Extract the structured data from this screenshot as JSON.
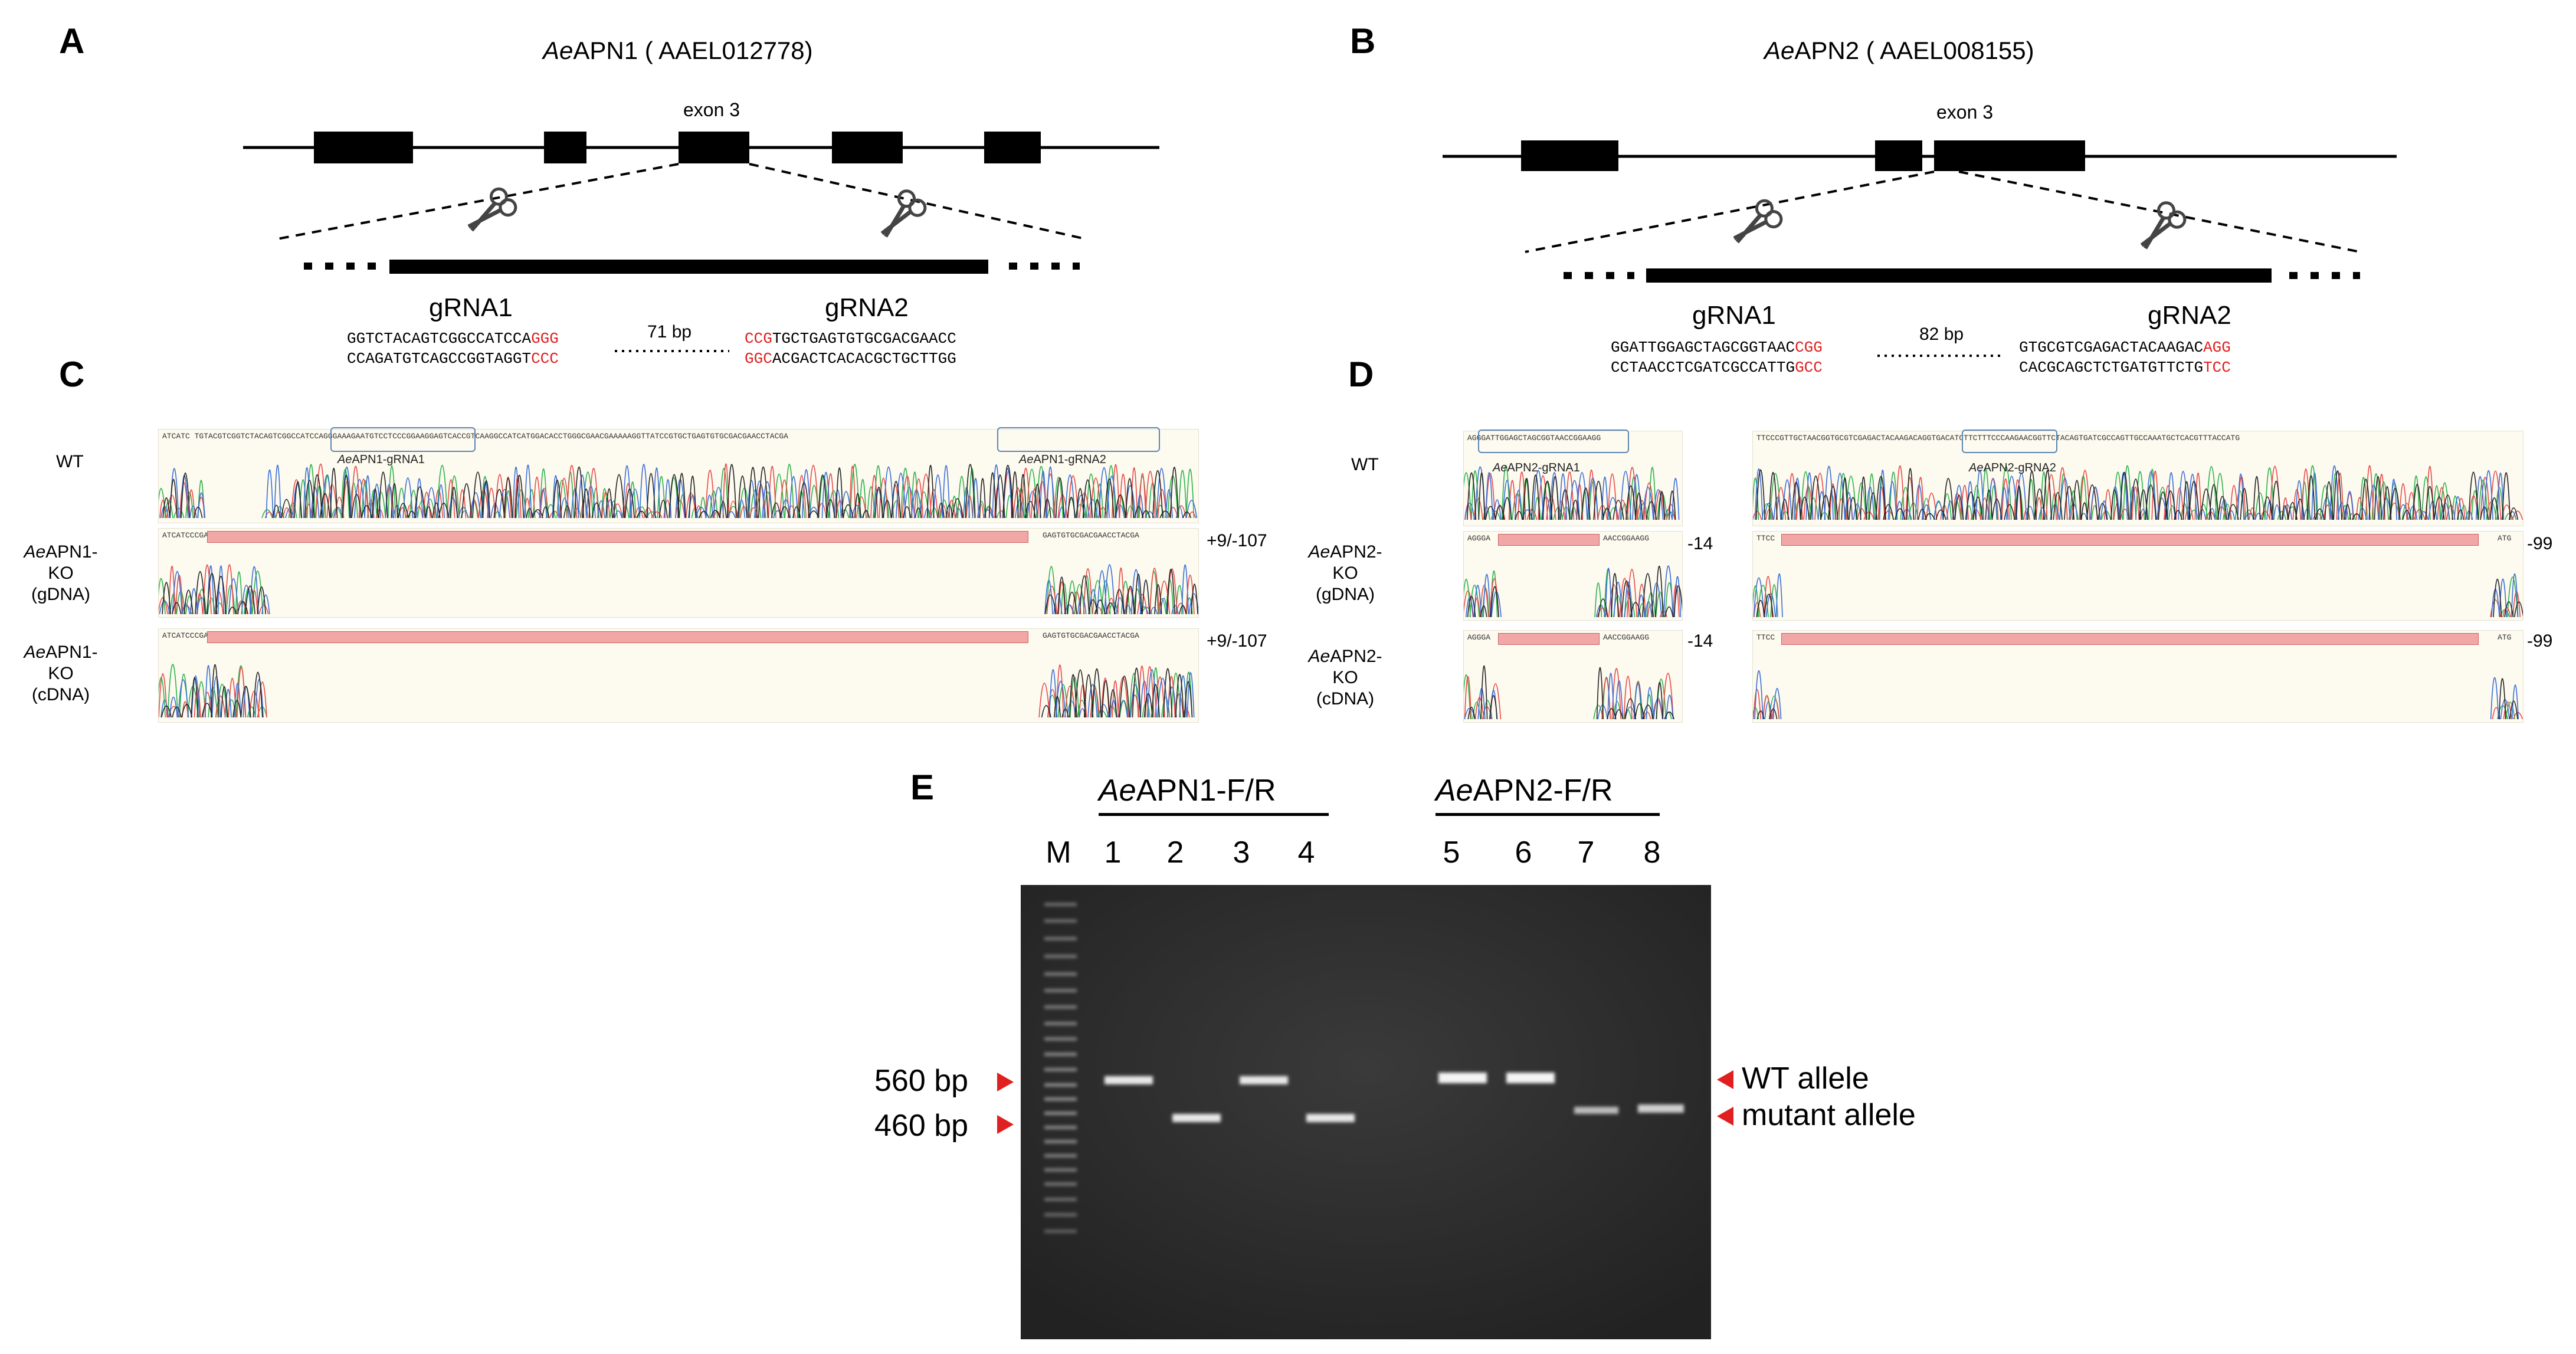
{
  "panels": {
    "A": "A",
    "B": "B",
    "C": "C",
    "D": "D",
    "E": "E"
  },
  "apn1": {
    "title_italic": "Ae",
    "title_rest": "APN1 ( AAEL012778)",
    "exon_label": "exon 3",
    "grna1_name": "gRNA1",
    "grna2_name": "gRNA2",
    "spacer": "71 bp",
    "grna1_top": "GGTCTACAGTCGGCCATCCA",
    "grna1_top_pam": "GGG",
    "grna1_bot": "CCAGATGTCAGCCGGTAGGT",
    "grna1_bot_pam": "CCC",
    "grna2_top_pam": "CCG",
    "grna2_top": "TGCTGAGTGTGCGACGAACC",
    "grna2_bot_pam": "GGC",
    "grna2_bot": "ACGACTCACACGCTGCTTGG"
  },
  "apn2": {
    "title_italic": "Ae",
    "title_rest": "APN2 ( AAEL008155)",
    "exon_label": "exon 3",
    "grna1_name": "gRNA1",
    "grna2_name": "gRNA2",
    "spacer": "82 bp",
    "grna1_top": "GGATTGGAGCTAGCGGTAAC",
    "grna1_top_pam": "CGG",
    "grna1_bot": "CCTAACCTCGATCGCCATTG",
    "grna1_bot_pam": "GCC",
    "grna2_top": "GTGCGTCGAGACTACAAGAC",
    "grna2_top_pam": "AGG",
    "grna2_bot": "CACGCAGCTCTGATGTTCTG",
    "grna2_bot_pam": "TCC"
  },
  "panelC": {
    "wt_label": "WT",
    "ko_gdna_italic": "Ae",
    "ko_gdna_rest": "APN1-KO",
    "ko_gdna_sub": "(gDNA)",
    "ko_cdna_italic": "Ae",
    "ko_cdna_rest": "APN1-KO",
    "ko_cdna_sub": "(cDNA)",
    "indel_gdna": "+9/-107",
    "indel_cdna": "+9/-107",
    "box1_caption_italic": "Ae",
    "box1_caption_rest": "APN1-gRNA1",
    "box2_caption_italic": "Ae",
    "box2_caption_rest": "APN1-gRNA2",
    "wt_seq": "ATCATC        TGTACGTCGGTCTACAGTCGGCCATCCAGGGAAAGAATGTCCTCCCGGAAGGAGTCACCGTCAAGGCCATCATGGACACCTGGGCGAACGAAAAAGGTTATCCGTGCTGAGTGTGCGACGAACCTACGA",
    "ko_seq_left": "ATCATCCCGACTCTG",
    "ko_seq_right": "GAGTGTGCGACGAACCTACGA"
  },
  "panelD": {
    "wt_label": "WT",
    "ko_gdna_italic": "Ae",
    "ko_gdna_rest": "APN2-KO",
    "ko_gdna_sub": "(gDNA)",
    "ko_cdna_italic": "Ae",
    "ko_cdna_rest": "APN2-KO",
    "ko_cdna_sub": "(cDNA)",
    "indel1_gdna": "-14",
    "indel1_cdna": "-14",
    "indel2_gdna": "-99",
    "indel2_cdna": "-99",
    "box1_caption_italic": "Ae",
    "box1_caption_rest": "APN2-gRNA1",
    "box2_caption_italic": "Ae",
    "box2_caption_rest": "APN2-gRNA2",
    "wt_seq1": "AGGGATTGGAGCTAGCGGTAACCGGAAGG",
    "wt_seq2": "TTCCCGTTGCTAACGGTGCGTCGAGACTACAAGACAGGTGACATCTTCTTTCCCAAGAACGGTTCTACAGTGATCGCCAGTTGCCAAATGCTCACGTTTACCATG",
    "ko_seq1_left": "AGGGA",
    "ko_seq1_right": "AACCGGAAGG",
    "ko_seq2_left": "TTCC",
    "ko_seq2_right": "ATG"
  },
  "panelE": {
    "marker_label": "M",
    "lanes": [
      "1",
      "2",
      "3",
      "4",
      "5",
      "6",
      "7",
      "8"
    ],
    "primer1_italic": "Ae",
    "primer1_rest": "APN1-F/R",
    "primer2_italic": "Ae",
    "primer2_rest": "APN2-F/R",
    "bp_high": "560 bp",
    "bp_low": "460 bp",
    "wt_allele": "WT allele",
    "mutant_allele": "mutant allele"
  },
  "colors": {
    "pam": "#e02020",
    "arrow": "#e02020",
    "box": "#5b86b5",
    "deletion": "#f2a7a7"
  }
}
